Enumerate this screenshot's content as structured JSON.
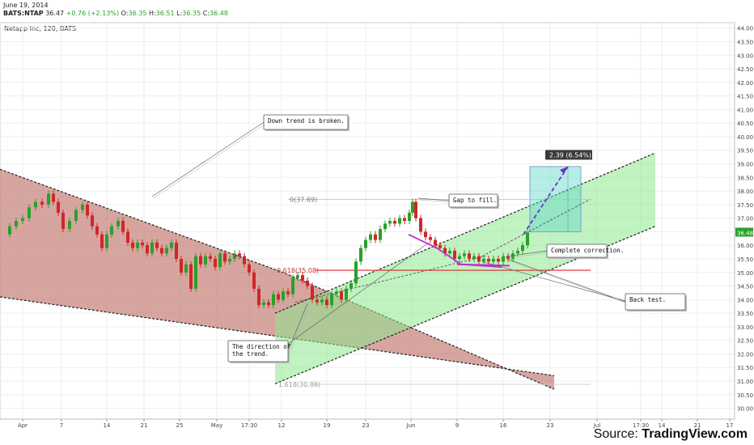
{
  "header": {
    "date": "June 19, 2014",
    "symbol": "BATS:NTAP",
    "last": "36.47",
    "change": "+0.76 (+2.13%)",
    "o_label": "O:",
    "o_val": "36.35",
    "h_label": "H:",
    "h_val": "36.51",
    "l_label": "L:",
    "l_val": "36.35",
    "c_label": "C:",
    "c_val": "36.48"
  },
  "chart_title": "Netapp Inc, 120, BATS",
  "source": {
    "prefix": "Source: ",
    "site": "TradingView.com"
  },
  "colors": {
    "up": "#2aa02a",
    "down": "#d0262a",
    "bear_channel": "#c0746c",
    "bull_channel": "#8ee88e",
    "projection": "#6a35c9",
    "price_tag": "#2aa02a"
  },
  "chart_data": {
    "type": "candlestick",
    "title": "Netapp Inc, 120, BATS",
    "ylim": [
      29.6,
      44.2
    ],
    "y_ticks": [
      30.0,
      30.5,
      31.0,
      31.5,
      32.0,
      32.5,
      33.0,
      33.5,
      34.0,
      34.5,
      35.0,
      35.5,
      36.0,
      36.5,
      37.0,
      37.5,
      38.0,
      38.5,
      39.0,
      39.5,
      40.0,
      40.5,
      41.0,
      41.5,
      42.0,
      42.5,
      43.0,
      43.5,
      44.0
    ],
    "y_tick_labels": [
      "30.00",
      "30.50",
      "31.00",
      "31.50",
      "32.00",
      "32.50",
      "33.00",
      "33.50",
      "34.00",
      "34.50",
      "35.00",
      "35.50",
      "36.00",
      "36.50",
      "37.00",
      "37.50",
      "38.00",
      "38.50",
      "39.00",
      "39.50",
      "40.00",
      "40.50",
      "41.00",
      "41.50",
      "42.00",
      "42.50",
      "43.00",
      "43.50",
      "44.00"
    ],
    "x_range": [
      0,
      908
    ],
    "x_ticks": [
      {
        "pos": 28,
        "label": "Apr"
      },
      {
        "pos": 76,
        "label": "7"
      },
      {
        "pos": 132,
        "label": "14"
      },
      {
        "pos": 178,
        "label": "21"
      },
      {
        "pos": 222,
        "label": "25"
      },
      {
        "pos": 268,
        "label": "May"
      },
      {
        "pos": 308,
        "label": "17:30"
      },
      {
        "pos": 348,
        "label": "12"
      },
      {
        "pos": 404,
        "label": "19"
      },
      {
        "pos": 452,
        "label": "23"
      },
      {
        "pos": 508,
        "label": "Jun"
      },
      {
        "pos": 565,
        "label": "9"
      },
      {
        "pos": 622,
        "label": "16"
      },
      {
        "pos": 680,
        "label": "23"
      },
      {
        "pos": 738,
        "label": "Jul"
      },
      {
        "pos": 792,
        "label": "17:30"
      },
      {
        "pos": 818,
        "label": "14"
      },
      {
        "pos": 862,
        "label": "21"
      },
      {
        "pos": 902,
        "label": "17"
      }
    ],
    "close_path": [
      [
        5,
        36.4
      ],
      [
        12,
        36.7
      ],
      [
        20,
        36.9
      ],
      [
        28,
        37.0
      ],
      [
        36,
        37.4
      ],
      [
        44,
        37.6
      ],
      [
        52,
        37.5
      ],
      [
        60,
        37.9
      ],
      [
        66,
        37.6
      ],
      [
        72,
        37.2
      ],
      [
        78,
        36.6
      ],
      [
        86,
        36.9
      ],
      [
        94,
        37.3
      ],
      [
        102,
        37.5
      ],
      [
        108,
        37.1
      ],
      [
        114,
        36.7
      ],
      [
        120,
        36.4
      ],
      [
        126,
        35.9
      ],
      [
        132,
        36.4
      ],
      [
        138,
        36.7
      ],
      [
        146,
        36.9
      ],
      [
        152,
        36.5
      ],
      [
        158,
        36.1
      ],
      [
        164,
        35.9
      ],
      [
        170,
        36.1
      ],
      [
        176,
        36.0
      ],
      [
        182,
        35.7
      ],
      [
        188,
        36.1
      ],
      [
        194,
        35.9
      ],
      [
        200,
        35.7
      ],
      [
        206,
        35.9
      ],
      [
        212,
        36.1
      ],
      [
        218,
        35.5
      ],
      [
        224,
        35.0
      ],
      [
        230,
        35.3
      ],
      [
        236,
        34.4
      ],
      [
        242,
        35.6
      ],
      [
        248,
        35.3
      ],
      [
        254,
        35.6
      ],
      [
        260,
        35.5
      ],
      [
        266,
        35.2
      ],
      [
        272,
        35.7
      ],
      [
        278,
        35.4
      ],
      [
        284,
        35.5
      ],
      [
        290,
        35.7
      ],
      [
        296,
        35.6
      ],
      [
        302,
        35.3
      ],
      [
        308,
        35.0
      ],
      [
        314,
        34.4
      ],
      [
        320,
        33.8
      ],
      [
        326,
        33.9
      ],
      [
        332,
        33.8
      ],
      [
        338,
        34.2
      ],
      [
        344,
        34.0
      ],
      [
        350,
        34.3
      ],
      [
        356,
        34.2
      ],
      [
        362,
        34.8
      ],
      [
        368,
        34.9
      ],
      [
        374,
        34.7
      ],
      [
        380,
        34.5
      ],
      [
        386,
        34.0
      ],
      [
        392,
        33.9
      ],
      [
        398,
        34.0
      ],
      [
        404,
        33.8
      ],
      [
        410,
        34.2
      ],
      [
        416,
        34.3
      ],
      [
        422,
        34.0
      ],
      [
        428,
        34.4
      ],
      [
        434,
        34.6
      ],
      [
        440,
        35.4
      ],
      [
        446,
        35.9
      ],
      [
        452,
        36.2
      ],
      [
        458,
        36.4
      ],
      [
        464,
        36.2
      ],
      [
        470,
        36.6
      ],
      [
        476,
        36.8
      ],
      [
        482,
        36.9
      ],
      [
        488,
        36.8
      ],
      [
        494,
        37.0
      ],
      [
        500,
        36.9
      ],
      [
        506,
        37.2
      ],
      [
        510,
        37.6
      ],
      [
        514,
        37.0
      ],
      [
        520,
        36.5
      ],
      [
        526,
        36.3
      ],
      [
        532,
        36.2
      ],
      [
        538,
        36.0
      ],
      [
        544,
        35.9
      ],
      [
        550,
        35.7
      ],
      [
        556,
        35.8
      ],
      [
        562,
        35.5
      ],
      [
        568,
        35.6
      ],
      [
        574,
        35.7
      ],
      [
        580,
        35.5
      ],
      [
        586,
        35.6
      ],
      [
        592,
        35.4
      ],
      [
        598,
        35.5
      ],
      [
        604,
        35.4
      ],
      [
        610,
        35.5
      ],
      [
        616,
        35.4
      ],
      [
        622,
        35.6
      ],
      [
        628,
        35.5
      ],
      [
        634,
        35.7
      ],
      [
        640,
        35.8
      ],
      [
        646,
        36.0
      ],
      [
        652,
        36.47
      ]
    ],
    "current_price": "36.48",
    "annotations": [
      {
        "text": "Down trend is broken."
      },
      {
        "text": "Gap to fill."
      },
      {
        "text": "Complete correction."
      },
      {
        "text": "Back test."
      },
      {
        "text": "The direction of the trend."
      }
    ],
    "fib_levels": [
      {
        "label": "0(37.69)",
        "value": 37.69
      },
      {
        "label": "0.618(35.08)",
        "value": 35.08
      },
      {
        "label": "1.618(30.88)",
        "value": 30.88
      }
    ],
    "projection_label": "2.39 (6.54%)",
    "bear_channel": {
      "upper": [
        [
          0,
          38.8
        ],
        [
          350,
          35.0
        ],
        [
          685,
          30.7
        ]
      ],
      "lower": [
        [
          0,
          34.1
        ],
        [
          685,
          31.2
        ]
      ]
    },
    "bull_channel": {
      "upper": [
        [
          340,
          33.5
        ],
        [
          810,
          39.4
        ]
      ],
      "lower": [
        [
          340,
          30.9
        ],
        [
          810,
          36.7
        ]
      ]
    }
  }
}
